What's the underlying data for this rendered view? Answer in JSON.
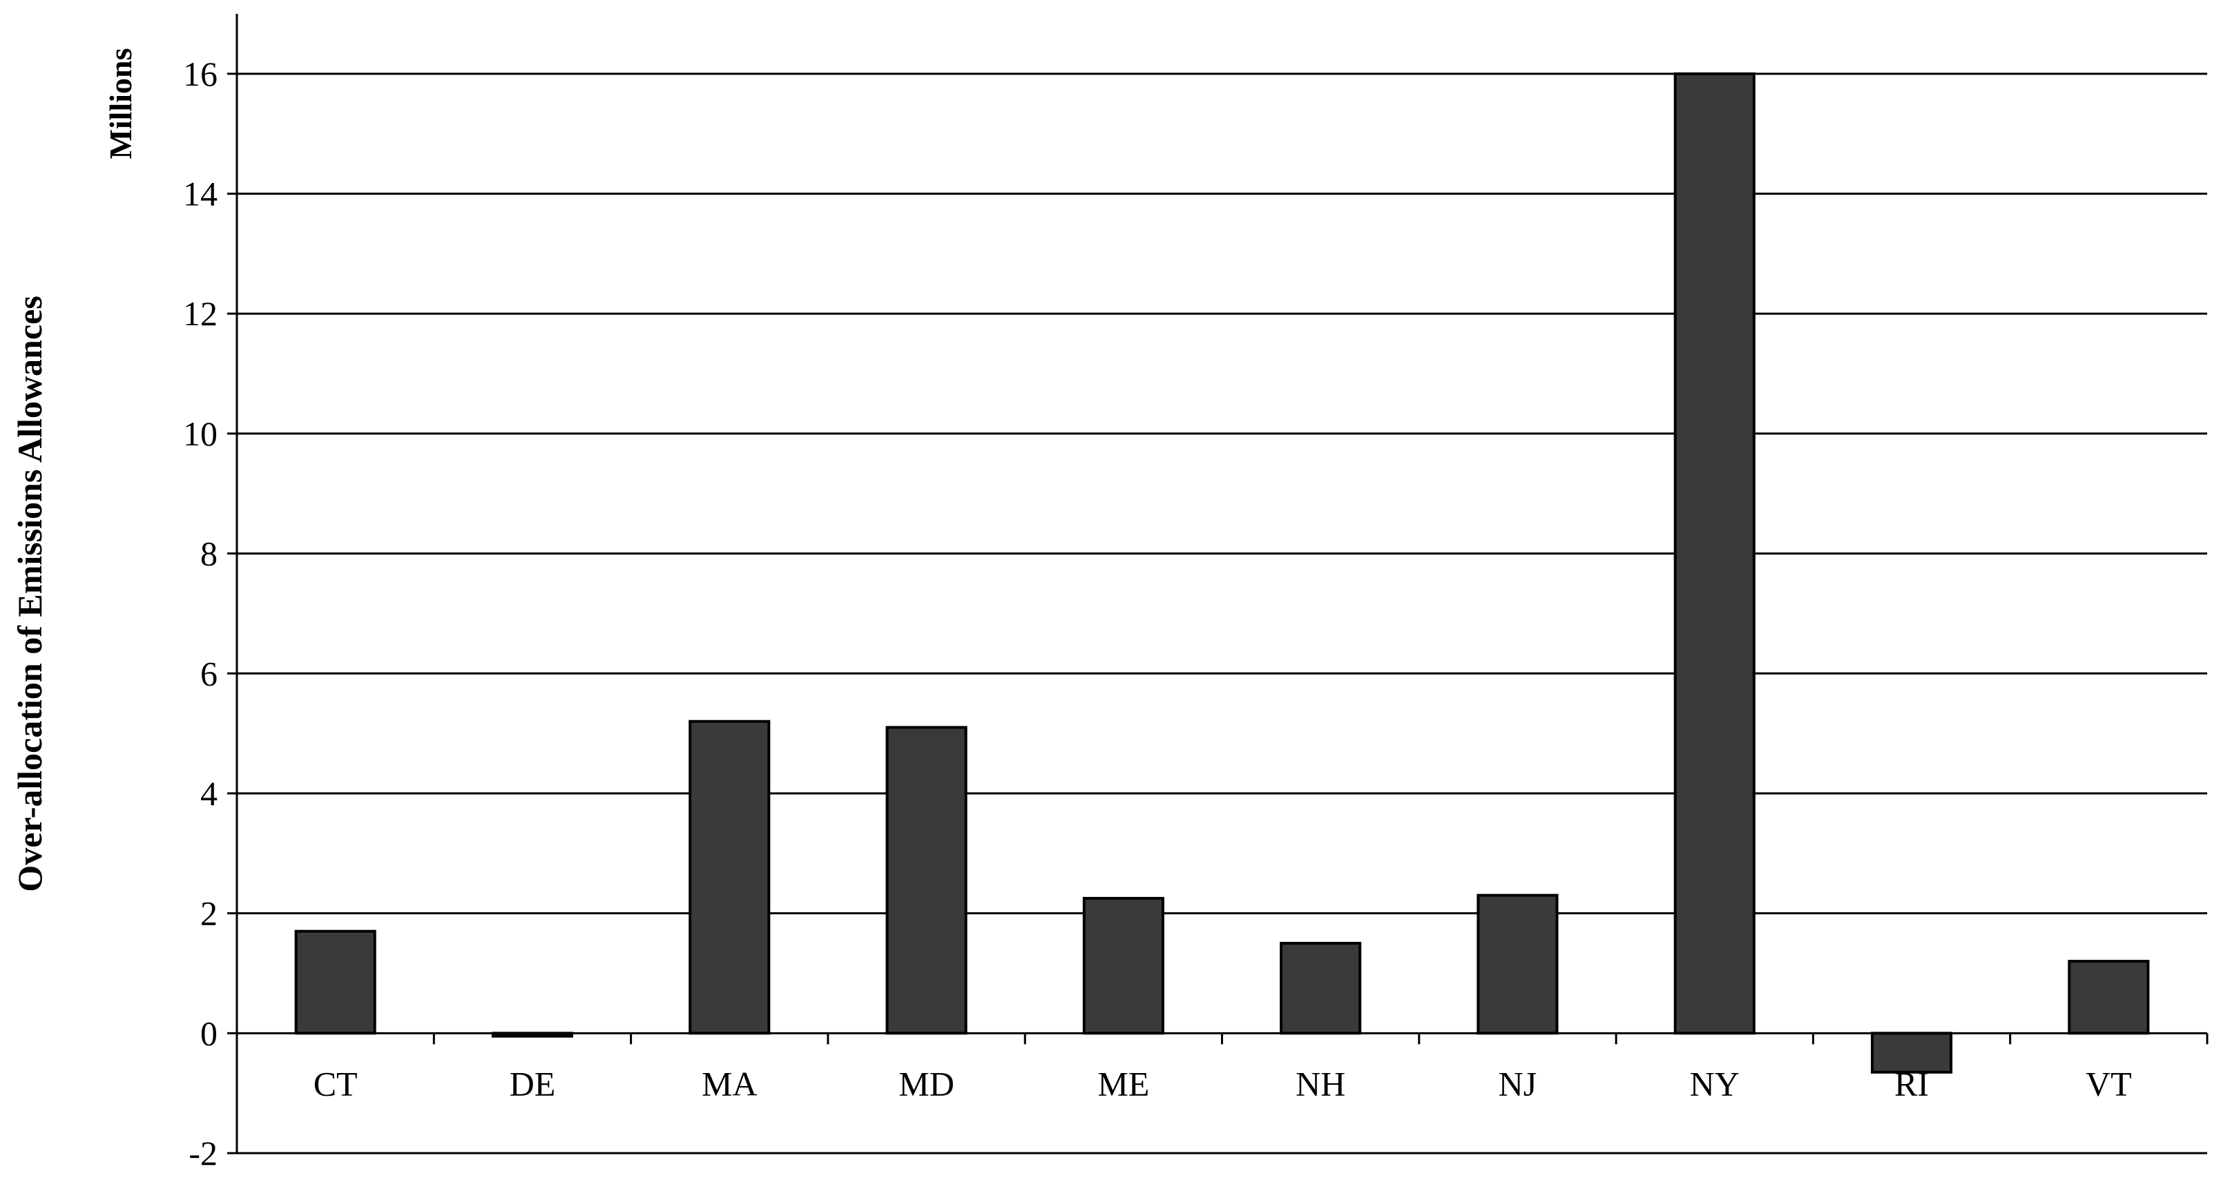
{
  "chart_data": {
    "type": "bar",
    "title": "",
    "xlabel": "",
    "ylabel": "Over-allocation of Emissions Allowances",
    "unit_label": "Millions",
    "categories": [
      "CT",
      "DE",
      "MA",
      "MD",
      "ME",
      "NH",
      "NJ",
      "NY",
      "RI",
      "VT"
    ],
    "values": [
      1.7,
      -0.05,
      5.2,
      5.1,
      2.25,
      1.5,
      2.3,
      16.0,
      -0.65,
      1.2
    ],
    "ylim": [
      -2,
      17
    ],
    "yticks": [
      -2,
      0,
      2,
      4,
      6,
      8,
      10,
      12,
      14,
      16
    ],
    "grid": true,
    "legend": "none",
    "colors": {
      "bar": "#3a3a3a",
      "bar_outline": "#000000",
      "grid": "#000000"
    }
  }
}
